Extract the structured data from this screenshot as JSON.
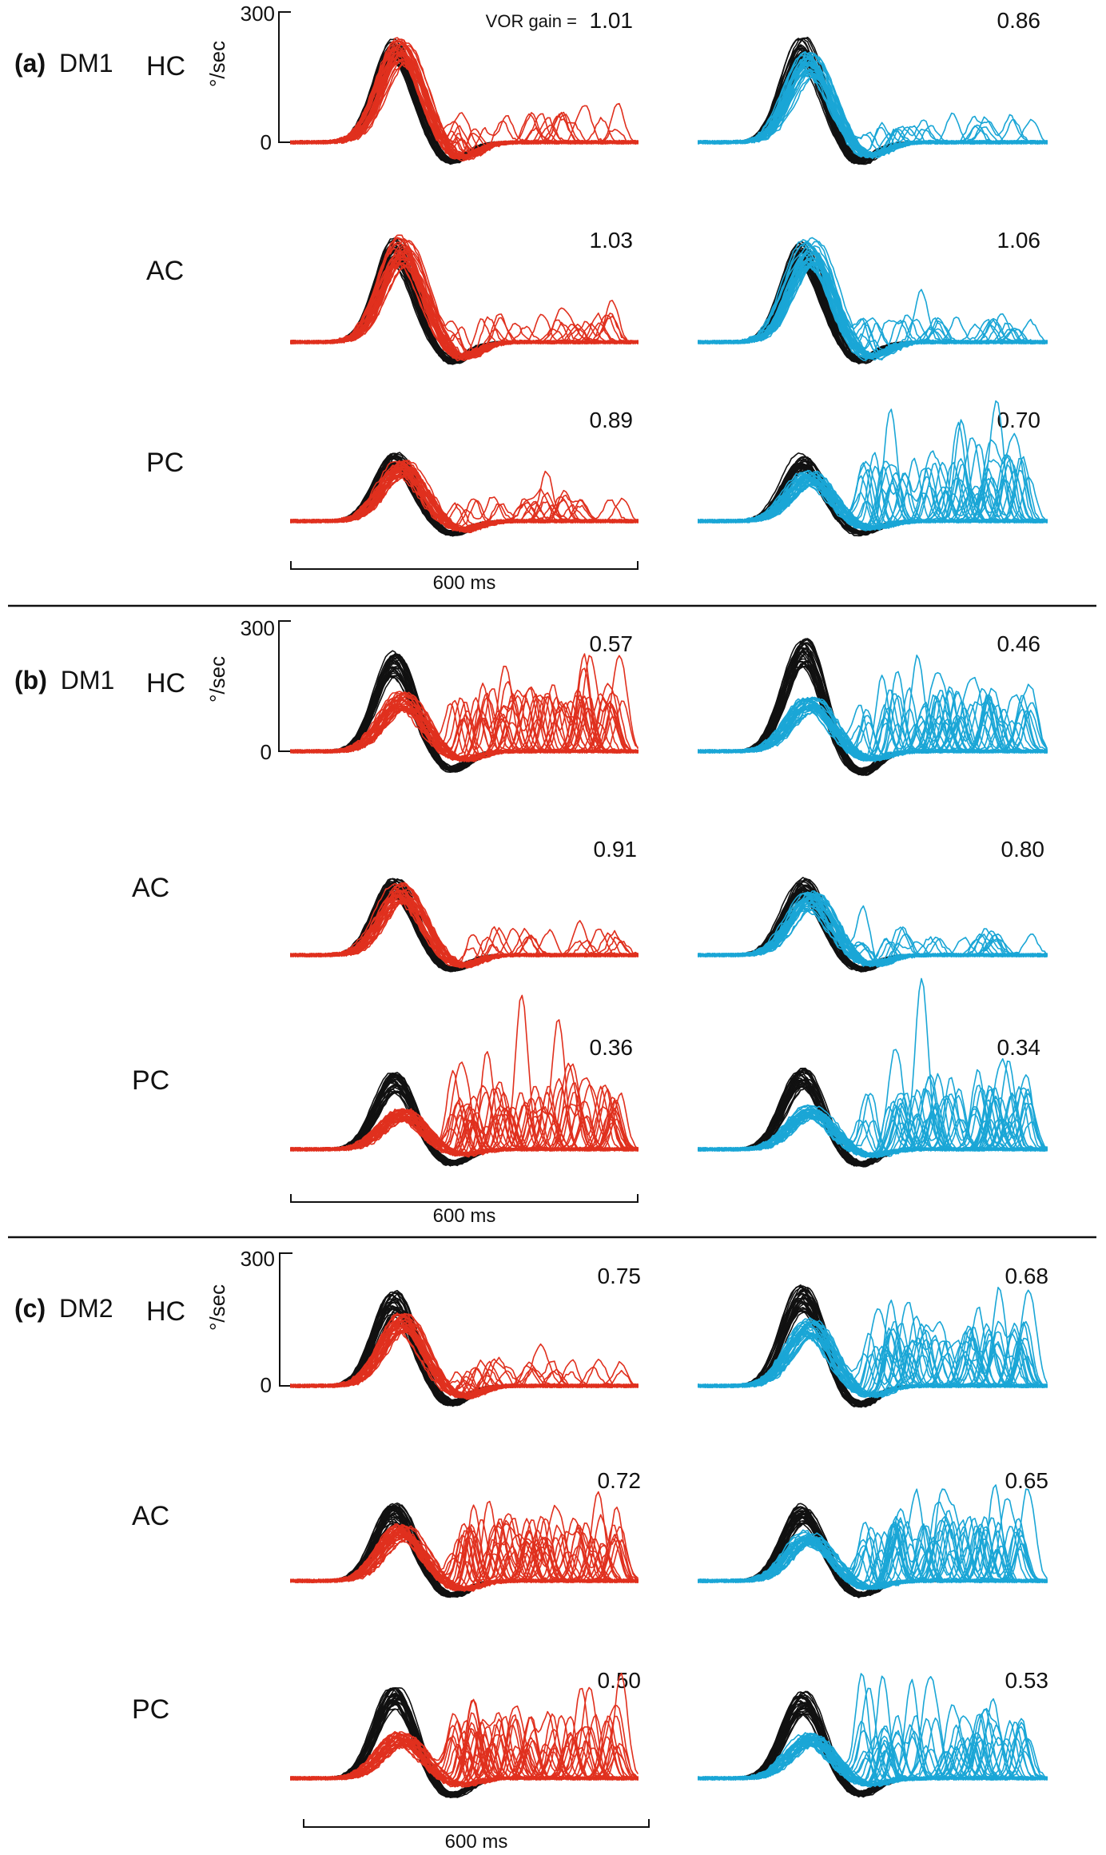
{
  "panels": [
    {
      "letter": "(a)",
      "group": "DM1",
      "scalebar_label": "600 ms",
      "rows": [
        {
          "label": "HC",
          "gains": [
            "1.01",
            "0.86"
          ]
        },
        {
          "label": "AC",
          "gains": [
            "1.03",
            "1.06"
          ]
        },
        {
          "label": "PC",
          "gains": [
            "0.89",
            "0.70"
          ]
        }
      ]
    },
    {
      "letter": "(b)",
      "group": "DM1",
      "scalebar_label": "600 ms",
      "rows": [
        {
          "label": "HC",
          "gains": [
            "0.57",
            "0.46"
          ]
        },
        {
          "label": "AC",
          "gains": [
            "0.91",
            "0.80"
          ]
        },
        {
          "label": "PC",
          "gains": [
            "0.36",
            "0.34"
          ]
        }
      ]
    },
    {
      "letter": "(c)",
      "group": "DM2",
      "scalebar_label": "600 ms",
      "rows": [
        {
          "label": "HC",
          "gains": [
            "0.75",
            "0.68"
          ]
        },
        {
          "label": "AC",
          "gains": [
            "0.72",
            "0.65"
          ]
        },
        {
          "label": "PC",
          "gains": [
            "0.50",
            "0.53"
          ]
        }
      ]
    }
  ],
  "vor_gain_prefix": "VOR gain =",
  "y_axis": {
    "unit": "°/sec",
    "tick_top": "300",
    "tick_bottom": "0"
  },
  "colors": {
    "head": "#111111",
    "eye_left": "#e0301e",
    "eye_right": "#1aa6d6"
  },
  "chart_data": {
    "type": "line",
    "title": "",
    "xlabel": "",
    "ylabel": "°/sec",
    "ylim": [
      0,
      300
    ],
    "x_duration_ms": 600,
    "series_roles": {
      "black": "head impulse velocity",
      "red": "eye velocity (left column)",
      "cyan": "eye velocity (right column)"
    },
    "approx_peak_velocity": [
      {
        "panel": "(a)",
        "canal": "HC",
        "head": [
          230,
          230
        ],
        "eye": [
          235,
          200
        ]
      },
      {
        "panel": "(a)",
        "canal": "AC",
        "head": [
          230,
          220
        ],
        "eye": [
          235,
          230
        ]
      },
      {
        "panel": "(a)",
        "canal": "PC",
        "head": [
          150,
          150
        ],
        "eye": [
          135,
          110
        ]
      },
      {
        "panel": "(b)",
        "canal": "HC",
        "head": [
          220,
          250
        ],
        "eye": [
          130,
          120
        ]
      },
      {
        "panel": "(b)",
        "canal": "AC",
        "head": [
          170,
          170
        ],
        "eye": [
          160,
          140
        ]
      },
      {
        "panel": "(b)",
        "canal": "PC",
        "head": [
          170,
          180
        ],
        "eye": [
          90,
          95
        ]
      },
      {
        "panel": "(c)",
        "canal": "HC",
        "head": [
          210,
          220
        ],
        "eye": [
          160,
          150
        ]
      },
      {
        "panel": "(c)",
        "canal": "AC",
        "head": [
          170,
          170
        ],
        "eye": [
          125,
          110
        ]
      },
      {
        "panel": "(c)",
        "canal": "PC",
        "head": [
          200,
          190
        ],
        "eye": [
          100,
          100
        ]
      }
    ]
  }
}
